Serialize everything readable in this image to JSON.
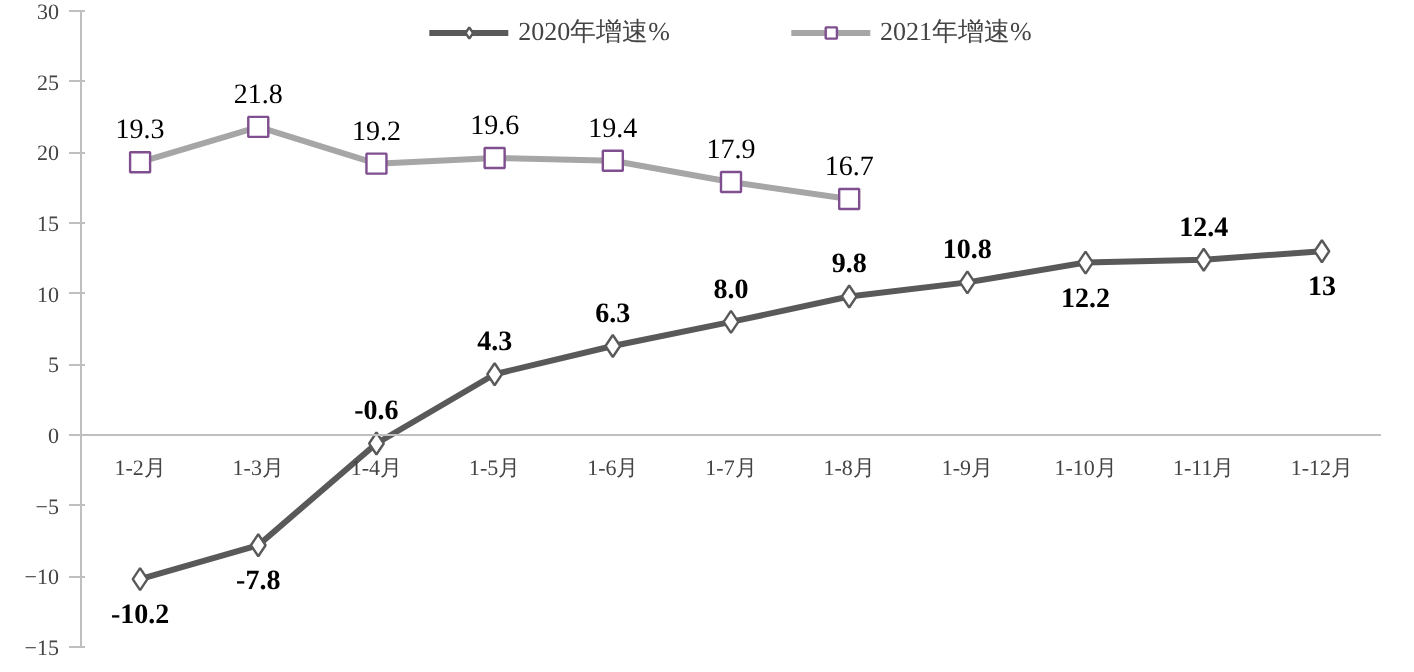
{
  "chart_data": {
    "type": "line",
    "categories": [
      "1-2月",
      "1-3月",
      "1-4月",
      "1-5月",
      "1-6月",
      "1-7月",
      "1-8月",
      "1-9月",
      "1-10月",
      "1-11月",
      "1-12月"
    ],
    "series": [
      {
        "name": "2020年增速%",
        "color": "#595959",
        "marker": "diamond",
        "values": [
          -10.2,
          -7.8,
          -0.6,
          4.3,
          6.3,
          8.0,
          9.8,
          10.8,
          12.2,
          12.4,
          13
        ],
        "value_labels": [
          "-10.2",
          "-7.8",
          "-0.6",
          "4.3",
          "6.3",
          "8.0",
          "9.8",
          "10.8",
          "12.2",
          "12.4",
          "13"
        ]
      },
      {
        "name": "2021年增速%",
        "color": "#a6a6a6",
        "marker": "square",
        "values": [
          19.3,
          21.8,
          19.2,
          19.6,
          19.4,
          17.9,
          16.7,
          null,
          null,
          null,
          null
        ],
        "value_labels": [
          "19.3",
          "21.8",
          "19.2",
          "19.6",
          "19.4",
          "17.9",
          "16.7",
          null,
          null,
          null,
          null
        ]
      }
    ],
    "ylim": [
      -15,
      30
    ],
    "yticks": [
      -15,
      -10,
      -5,
      0,
      5,
      10,
      15,
      20,
      25,
      30
    ],
    "data_labels": true,
    "grid": false,
    "legend": "top",
    "line_style": "solid"
  }
}
